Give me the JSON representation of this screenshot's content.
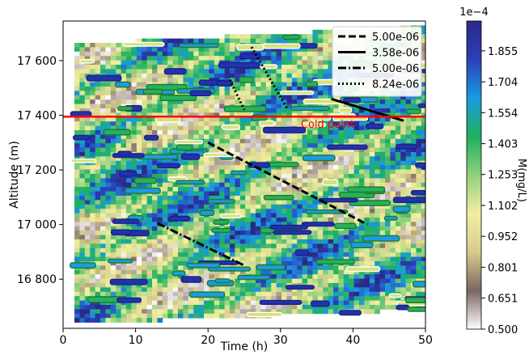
{
  "chart_data": {
    "type": "heatmap",
    "xlabel": "Time (h)",
    "ylabel": "Altitude (m)",
    "xlim": [
      0,
      50
    ],
    "ylim": [
      16620,
      17745
    ],
    "xticks": [
      0,
      10,
      20,
      30,
      40,
      50
    ],
    "yticks": [
      16800,
      17000,
      17200,
      17400,
      17600
    ],
    "ytick_labels": [
      "16 800",
      "17 000",
      "17 200",
      "17 400",
      "17 600"
    ],
    "colorbar": {
      "label": "M(mg/L)",
      "multiplier": "1e−4",
      "range": [
        0.5,
        2.0
      ],
      "ticks": [
        0.5,
        0.651,
        0.801,
        0.952,
        1.102,
        1.253,
        1.403,
        1.554,
        1.704,
        1.855
      ],
      "tick_labels": [
        "0.500",
        "0.651",
        "0.801",
        "0.952",
        "1.102",
        "1.253",
        "1.403",
        "1.554",
        "1.704",
        "1.855"
      ],
      "stops": [
        "#ffffff",
        "#7a6663",
        "#d6cc8d",
        "#f2efa0",
        "#8fd07e",
        "#1fb05c",
        "#1a9be0",
        "#2b3fb8",
        "#2a2a86"
      ]
    },
    "cold_point": {
      "label": "Cold point",
      "altitude": 17395,
      "color": "#ff0000"
    },
    "series": [
      {
        "name": "5.00e-06",
        "style": "dashed",
        "x": [
          20,
          42
        ],
        "y": [
          17300,
          17000
        ]
      },
      {
        "name": "3.58e-06",
        "style": "solid",
        "x": [
          37,
          47
        ],
        "y": [
          17460,
          17380
        ]
      },
      {
        "name": "5.00e-06",
        "style": "dashdot",
        "x": [
          13,
          25
        ],
        "y": [
          17005,
          16850
        ]
      },
      {
        "name": "8.24e-06",
        "style": "dotted",
        "x": [
          23,
          25
        ],
        "y": [
          17530,
          17420
        ]
      },
      {
        "name": "8.24e-06",
        "style": "dotted",
        "x": [
          26,
          31
        ],
        "y": [
          17650,
          17420
        ]
      }
    ],
    "legend": {
      "placement": "top-right",
      "entries": [
        {
          "label": "5.00e-06",
          "style": "dashed"
        },
        {
          "label": "3.58e-06",
          "style": "solid"
        },
        {
          "label": "5.00e-06",
          "style": "dashdot"
        },
        {
          "label": "8.24e-06",
          "style": "dotted"
        }
      ]
    }
  }
}
